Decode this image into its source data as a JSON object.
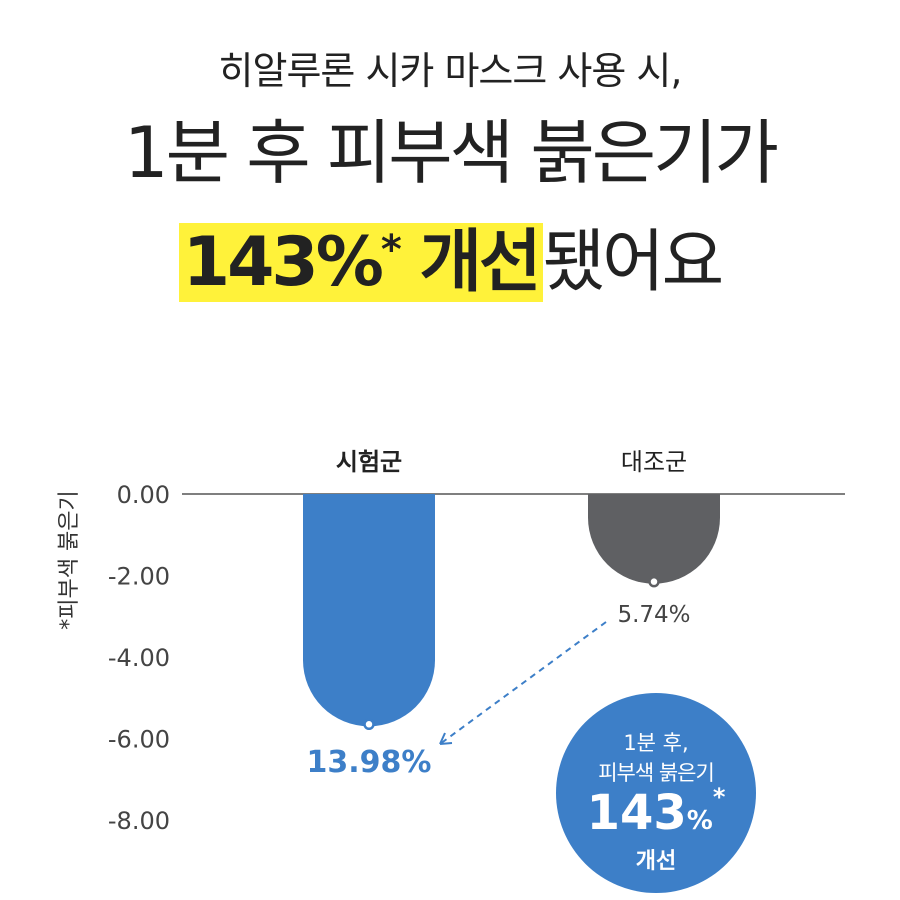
{
  "header": {
    "subtitle": "히알루론 시카 마스크 사용 시,",
    "line1": "1분 후 피부색 붉은기가",
    "highlight_value": "143%",
    "highlight_star": "*",
    "highlight_word": "개선",
    "line2_tail": "됐어요"
  },
  "chart_data": {
    "type": "bar",
    "ylabel": "*피부색 붉은기",
    "ylim": [
      -8.0,
      0.0
    ],
    "yticks": [
      "0.00",
      "-2.00",
      "-4.00",
      "-6.00",
      "-8.00"
    ],
    "categories": [
      "시험군",
      "대조군"
    ],
    "values": [
      -5.7,
      -2.2
    ],
    "data_labels": [
      "13.98%",
      "5.74%"
    ],
    "colors": {
      "test": "#3d7fc8",
      "control": "#5f6063",
      "axis": "#555555",
      "highlight": "#fff23a"
    }
  },
  "badge": {
    "line1": "1분 후,",
    "line2": "피부색 붉은기",
    "value": "143",
    "pct": "%",
    "star": "*",
    "word": "개선"
  }
}
